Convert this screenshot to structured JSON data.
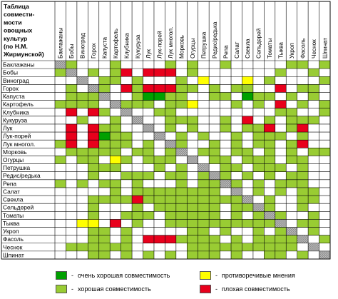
{
  "title_lines": [
    "Таблица",
    "совмести-",
    "мости",
    "овощных",
    "культур",
    "(по Н.М.",
    "Жирмунской)"
  ],
  "crops": [
    "Баклажаны",
    "Бобы",
    "Виноград",
    "Горох",
    "Капуста",
    "Картофель",
    "Клубника",
    "Кукуруза",
    "Лук",
    "Лук-порей",
    "Лук многол.",
    "Морковь",
    "Огурцы",
    "Петрушка",
    "Редис/редька",
    "Репа",
    "Салат",
    "Свекла",
    "Сельдерей",
    "Томаты",
    "Тыква",
    "Укроп",
    "Фасоль",
    "Чеснок",
    "Шпинат"
  ],
  "colors": {
    "very_good": "#00a000",
    "good": "#99cc33",
    "contradictory": "#ffff00",
    "bad": "#e8001c",
    "diagonal": "#8c8c8c",
    "empty": "#ffffff"
  },
  "legend": {
    "very_good_dash": "-",
    "very_good_label": "очень хорошая совместимость",
    "good_dash": "-",
    "good_label": "хорошая совместимость",
    "contradictory_dash": "-",
    "contradictory_label": "противоречивые мнения",
    "bad_dash": "-",
    "bad_label": "плохая совместимость"
  },
  "chart_data": {
    "type": "heatmap",
    "rows": [
      "Баклажаны",
      "Бобы",
      "Виноград",
      "Горох",
      "Капуста",
      "Картофель",
      "Клубника",
      "Кукуруза",
      "Лук",
      "Лук-порей",
      "Лук многол.",
      "Морковь",
      "Огурцы",
      "Петрушка",
      "Редис/редька",
      "Репа",
      "Салат",
      "Свекла",
      "Сельдерей",
      "Томаты",
      "Тыква",
      "Укроп",
      "Фасоль",
      "Чеснок",
      "Шпинат"
    ],
    "columns": [
      "Баклажаны",
      "Бобы",
      "Виноград",
      "Горох",
      "Капуста",
      "Картофель",
      "Клубника",
      "Кукуруза",
      "Лук",
      "Лук-порей",
      "Лук многол.",
      "Морковь",
      "Огурцы",
      "Петрушка",
      "Редис/редька",
      "Репа",
      "Салат",
      "Свекла",
      "Сельдерей",
      "Томаты",
      "Тыква",
      "Укроп",
      "Фасоль",
      "Чеснок",
      "Шпинат"
    ],
    "encoding": {
      "V": "очень хорошая совместимость",
      "G": "хорошая совместимость",
      "Y": "противоречивые мнения",
      "R": "плохая совместимость",
      "X": "diagonal",
      ".": "empty"
    },
    "matrix": [
      "XG...G....G.G..G.....GG.G",
      "GX.G.GR.RRR.G.......G..G.",
      "..X.GG.G...G.Y...Y.G....G",
      ".G.XG.RGRRRGG.G.GG..R.GG.",
      ".GGGX..GVVGG..GG.VGG.G.G.",
      "GGGG.XGGG.GGY...G.G.R.G.G",
      ".R.RG.X..GG.........GG..G",
      "..G..G.X..GGG..G.R.G.GGG.",
      ".R.RGG..X.G.G..G.GGR.GR..",
      ".R.RVGG..X.G.G..G.GGG.G..",
      "GR.RGGG.G.XG..G.G.GG.GR..",
      ".GGGGG.GG.GX.GG.GG.G.G.GG",
      "G.GG.YG.GGG.X.GG.GGG.GG..",
      "...GGG...G.G.X.GG.GGG.G..",
      "...G..GGG.GG.GXG.G.G.GG..",
      "G.G.GG.G...G.GGXG.G.GGG..",
      ".....G.GGGGGGGG.X.G.G.GG.",
      "...GGGGRGGGGGGGGGX.G..GG.",
      "...G...G.GGGGGG.GGXG..G..",
      "...G..GGG.GGGGG.G.GXG..G.",
      "..YY.R.G..GGGGGGGGGGX.GG.",
      "...GG.G.....GG.G..G.GX.G.",
      "...GG.G.RRRGGGG.G.GGGGX.G",
      ".GGGGGG.....GGGGGGGGGG.X.",
      "...GG.G.G.G.GGG.G..GG.G.X"
    ]
  }
}
